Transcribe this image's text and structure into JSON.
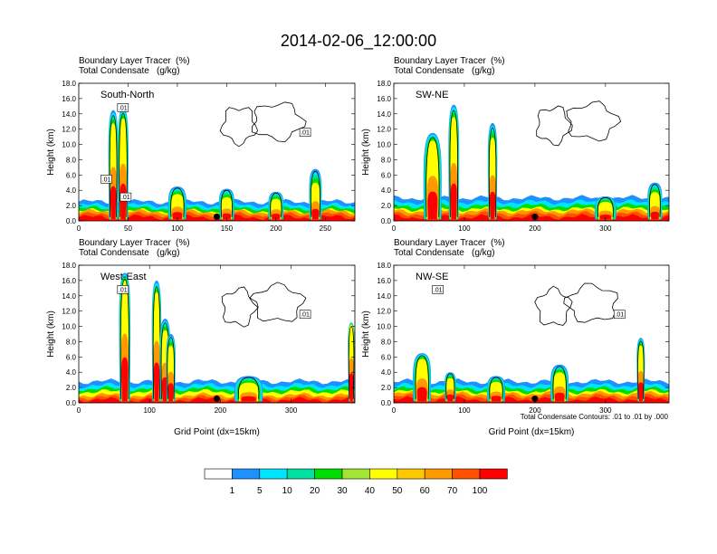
{
  "figure": {
    "title": "2014-02-06_12:00:00",
    "footnote": "Total Condensate Contours: .01 to .01 by .000"
  },
  "colorbar": {
    "labels": [
      "1",
      "5",
      "10",
      "20",
      "30",
      "40",
      "50",
      "60",
      "70",
      "100"
    ],
    "colors": [
      "#ffffff",
      "#1e90ff",
      "#00e5ff",
      "#00e0a0",
      "#00dd00",
      "#a0e632",
      "#ffff00",
      "#ffc800",
      "#ff9900",
      "#ff5000",
      "#ff0000"
    ]
  },
  "chart_data": [
    {
      "type": "heatmap",
      "panel_label": "South-North",
      "subtitle_left_1": "Boundary Layer Tracer",
      "subtitle_right_1": "(%)",
      "subtitle_left_2": "Total Condensate",
      "subtitle_right_2": "(g/kg)",
      "ylabel": "Height (km)",
      "xlabel": "",
      "xlim": [
        0,
        280
      ],
      "ylim": [
        0,
        18
      ],
      "xticks": [
        0,
        50,
        100,
        150,
        200,
        250
      ],
      "xtick_labels": [
        "0",
        "50",
        "100",
        "150",
        "200",
        "250"
      ],
      "yticks": [
        0,
        2,
        4,
        6,
        8,
        10,
        12,
        14,
        16,
        18
      ],
      "ytick_labels": [
        "0.0",
        "2.0",
        "4.0",
        "6.0",
        "8.0",
        "10.0",
        "12.0",
        "14.0",
        "16.0",
        "18.0"
      ],
      "marker_x": 140,
      "contour_labels": [
        ".01",
        ".01",
        ".01",
        ".01"
      ],
      "plumes": [
        {
          "x": 35,
          "w": 9,
          "top": 14.5,
          "core": 11
        },
        {
          "x": 45,
          "w": 10,
          "top": 14.8,
          "core": 12
        },
        {
          "x": 100,
          "w": 18,
          "top": 4.5,
          "core": 2.5
        },
        {
          "x": 150,
          "w": 15,
          "top": 4.2,
          "core": 2.0
        },
        {
          "x": 200,
          "w": 15,
          "top": 3.8,
          "core": 2.0
        },
        {
          "x": 240,
          "w": 12,
          "top": 6.8,
          "core": 3.2
        }
      ],
      "base": {
        "mid": 1.2,
        "top": 2.5
      }
    },
    {
      "type": "heatmap",
      "panel_label": "SW-NE",
      "subtitle_left_1": "Boundary Layer Tracer",
      "subtitle_right_1": "(%)",
      "subtitle_left_2": "Total Condensate",
      "subtitle_right_2": "(g/kg)",
      "ylabel": "Height (km)",
      "xlabel": "",
      "xlim": [
        0,
        390
      ],
      "ylim": [
        0,
        18
      ],
      "xticks": [
        0,
        100,
        200,
        300
      ],
      "xtick_labels": [
        "0",
        "100",
        "200",
        "300"
      ],
      "yticks": [
        0,
        2,
        4,
        6,
        8,
        10,
        12,
        14,
        16,
        18
      ],
      "ytick_labels": [
        "0.0",
        "2.0",
        "4.0",
        "6.0",
        "8.0",
        "10.0",
        "12.0",
        "14.0",
        "16.0",
        "18.0"
      ],
      "marker_x": 200,
      "contour_labels": [],
      "plumes": [
        {
          "x": 55,
          "w": 25,
          "top": 11.5,
          "core": 9.5
        },
        {
          "x": 85,
          "w": 14,
          "top": 15.2,
          "core": 12
        },
        {
          "x": 140,
          "w": 12,
          "top": 12.8,
          "core": 9
        },
        {
          "x": 300,
          "w": 30,
          "top": 3.2,
          "core": 1.8
        },
        {
          "x": 370,
          "w": 20,
          "top": 5.0,
          "core": 2.5
        }
      ],
      "base": {
        "mid": 1.3,
        "top": 3.0
      }
    },
    {
      "type": "heatmap",
      "panel_label": "West-East",
      "subtitle_left_1": "Boundary Layer Tracer",
      "subtitle_right_1": "(%)",
      "subtitle_left_2": "Total Condensate",
      "subtitle_right_2": "(g/kg)",
      "ylabel": "Height (km)",
      "xlabel": "Grid Point  (dx=15km)",
      "xlim": [
        0,
        390
      ],
      "ylim": [
        0,
        18
      ],
      "xticks": [
        0,
        100,
        200,
        300
      ],
      "xtick_labels": [
        "0",
        "100",
        "200",
        "300"
      ],
      "yticks": [
        0,
        2,
        4,
        6,
        8,
        10,
        12,
        14,
        16,
        18
      ],
      "ytick_labels": [
        "0.0",
        "2.0",
        "4.0",
        "6.0",
        "8.0",
        "10.0",
        "12.0",
        "14.0",
        "16.0",
        "18.0"
      ],
      "marker_x": 195,
      "contour_labels": [
        ".01",
        ".01"
      ],
      "plumes": [
        {
          "x": 110,
          "w": 12,
          "top": 16.0,
          "core": 13
        },
        {
          "x": 122,
          "w": 14,
          "top": 11.0,
          "core": 8
        },
        {
          "x": 130,
          "w": 12,
          "top": 9.0,
          "core": 6
        },
        {
          "x": 65,
          "w": 15,
          "top": 17.0,
          "core": 15
        },
        {
          "x": 385,
          "w": 8,
          "top": 10.5,
          "core": 10
        },
        {
          "x": 240,
          "w": 40,
          "top": 3.5,
          "core": 1.8
        }
      ],
      "base": {
        "mid": 1.0,
        "top": 2.8
      }
    },
    {
      "type": "heatmap",
      "panel_label": "NW-SE",
      "subtitle_left_1": "Boundary Layer Tracer",
      "subtitle_right_1": "(%)",
      "subtitle_left_2": "Total Condensate",
      "subtitle_right_2": "(g/kg)",
      "ylabel": "Height (km)",
      "xlabel": "Grid Point  (dx=15km)",
      "xlim": [
        0,
        390
      ],
      "ylim": [
        0,
        18
      ],
      "xticks": [
        0,
        100,
        200,
        300
      ],
      "xtick_labels": [
        "0",
        "100",
        "200",
        "300"
      ],
      "yticks": [
        0,
        2,
        4,
        6,
        8,
        10,
        12,
        14,
        16,
        18
      ],
      "ytick_labels": [
        "0.0",
        "2.0",
        "4.0",
        "6.0",
        "8.0",
        "10.0",
        "12.0",
        "14.0",
        "16.0",
        "18.0"
      ],
      "marker_x": 200,
      "contour_labels": [
        ".01",
        ".01"
      ],
      "plumes": [
        {
          "x": 40,
          "w": 25,
          "top": 6.5,
          "core": 5
        },
        {
          "x": 80,
          "w": 15,
          "top": 4.0,
          "core": 2.5
        },
        {
          "x": 235,
          "w": 25,
          "top": 5.0,
          "core": 3.0
        },
        {
          "x": 350,
          "w": 10,
          "top": 8.5,
          "core": 6.5
        },
        {
          "x": 145,
          "w": 25,
          "top": 3.5,
          "core": 2.0
        }
      ],
      "base": {
        "mid": 1.2,
        "top": 2.8
      }
    }
  ]
}
